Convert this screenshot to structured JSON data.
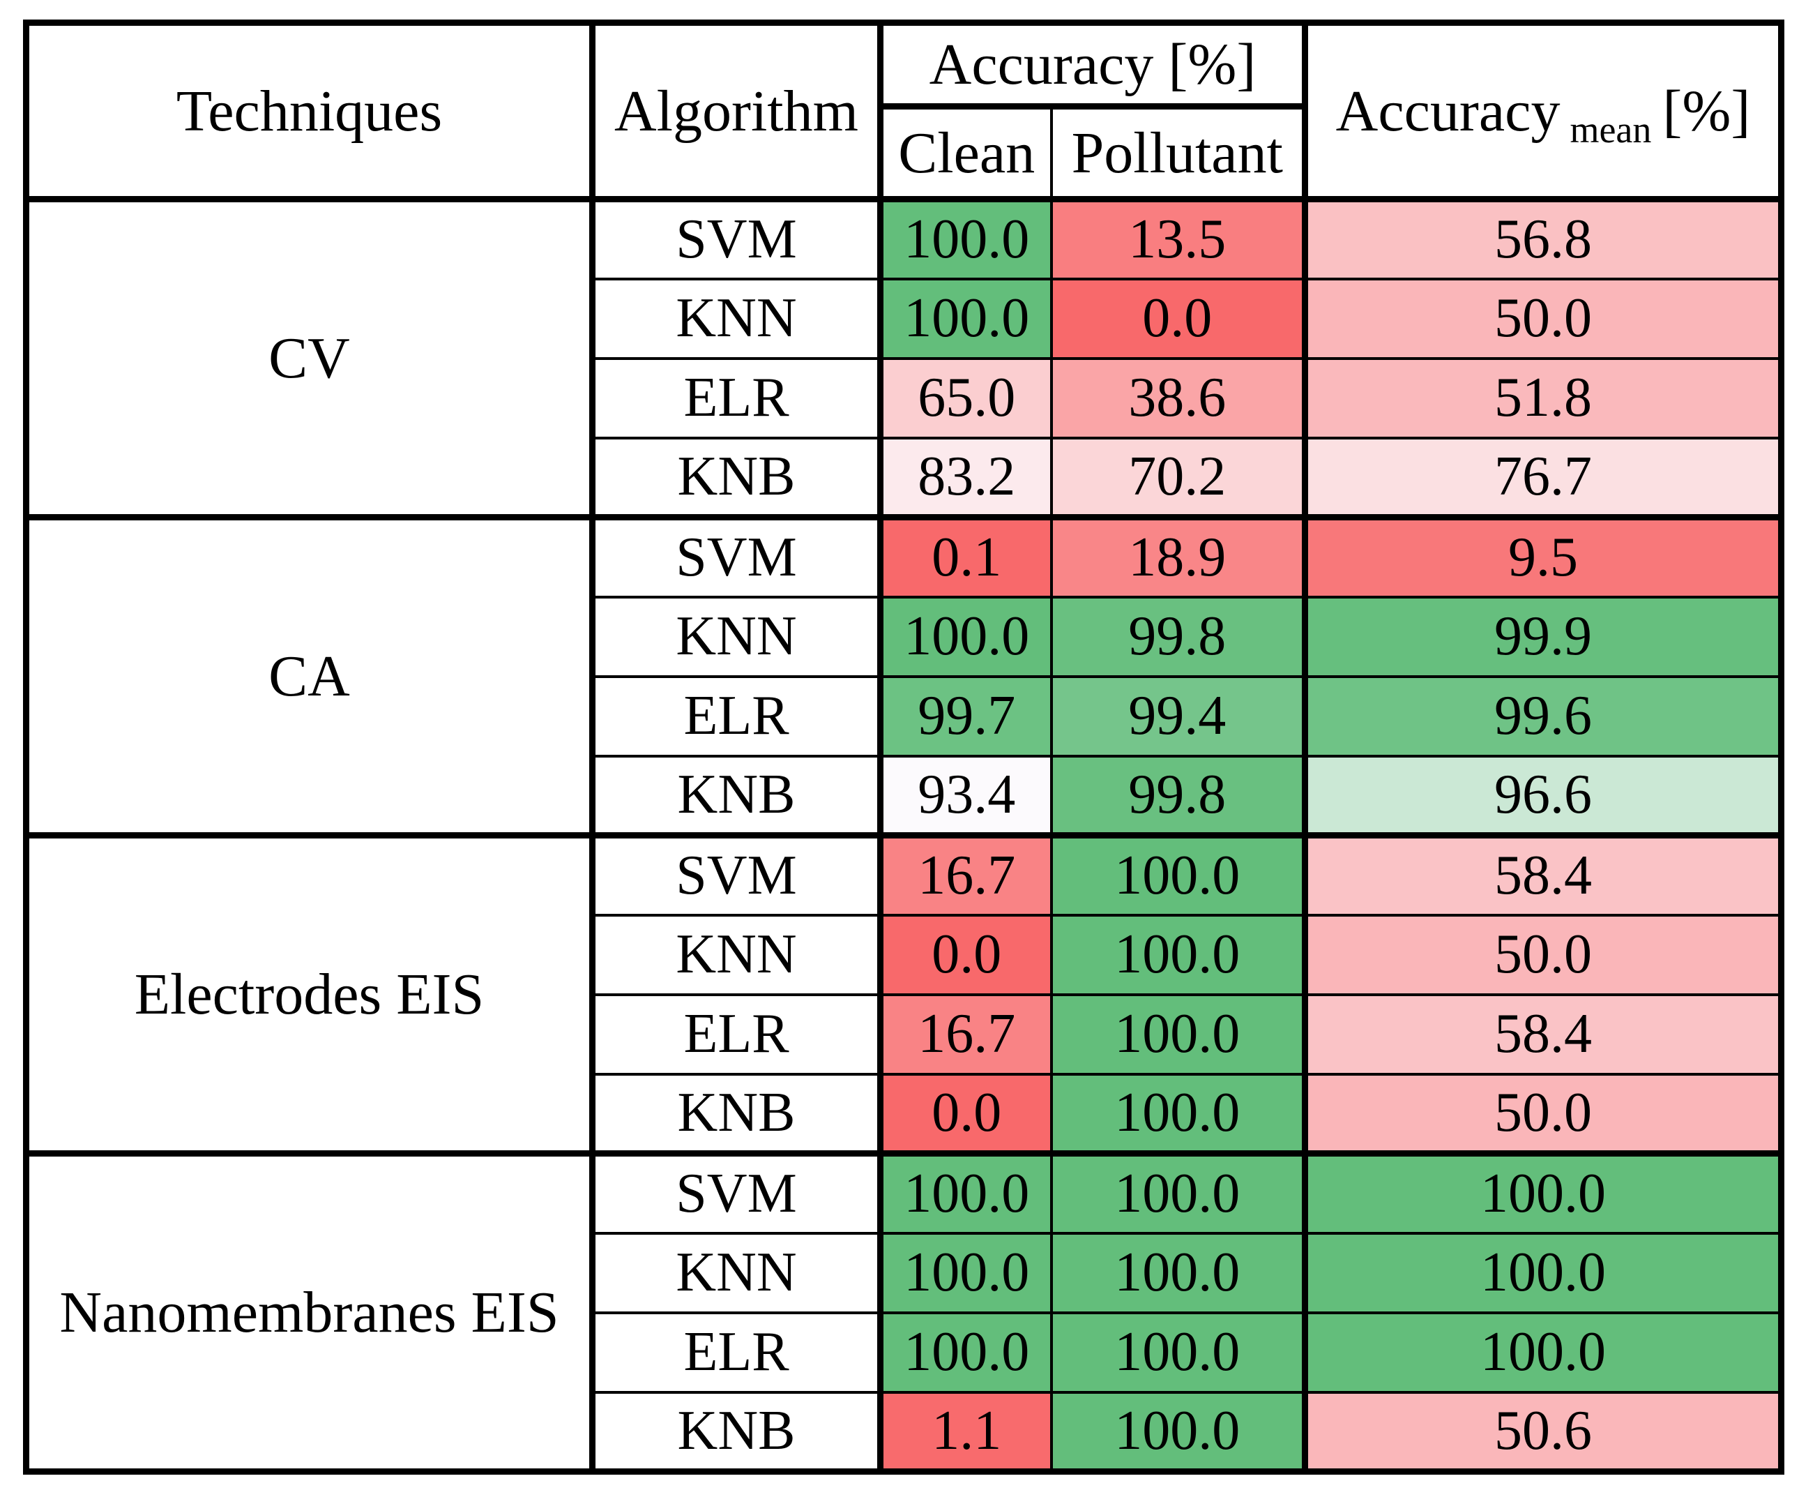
{
  "header": {
    "techniques": "Techniques",
    "algorithm": "Algorithm",
    "accuracy": "Accuracy [%]",
    "clean": "Clean",
    "pollutant": "Pollutant",
    "accuracy_mean_prefix": "Accuracy",
    "accuracy_mean_sub": "mean",
    "accuracy_mean_suffix": "[%]"
  },
  "color_scale": {
    "min": 0,
    "mid": 95,
    "max": 100,
    "min_color": "#F8696B",
    "mid_color": "#FCFCFF",
    "max_color": "#63BE7B",
    "border_color": "#000000",
    "text_color": "#000000"
  },
  "value_decimals": 1,
  "chart_data": {
    "type": "table",
    "columns": [
      "Techniques",
      "Algorithm",
      "Clean",
      "Pollutant",
      "Accuracy mean [%]"
    ],
    "groups": [
      {
        "technique": "CV",
        "rows": [
          {
            "algorithm": "SVM",
            "clean": 100.0,
            "pollutant": 13.5,
            "mean": 56.8
          },
          {
            "algorithm": "KNN",
            "clean": 100.0,
            "pollutant": 0.0,
            "mean": 50.0
          },
          {
            "algorithm": "ELR",
            "clean": 65.0,
            "pollutant": 38.6,
            "mean": 51.8
          },
          {
            "algorithm": "KNB",
            "clean": 83.2,
            "pollutant": 70.2,
            "mean": 76.7
          }
        ]
      },
      {
        "technique": "CA",
        "rows": [
          {
            "algorithm": "SVM",
            "clean": 0.1,
            "pollutant": 18.9,
            "mean": 9.5
          },
          {
            "algorithm": "KNN",
            "clean": 100.0,
            "pollutant": 99.8,
            "mean": 99.9
          },
          {
            "algorithm": "ELR",
            "clean": 99.7,
            "pollutant": 99.4,
            "mean": 99.6
          },
          {
            "algorithm": "KNB",
            "clean": 93.4,
            "pollutant": 99.8,
            "mean": 96.6
          }
        ]
      },
      {
        "technique": "Electrodes EIS",
        "rows": [
          {
            "algorithm": "SVM",
            "clean": 16.7,
            "pollutant": 100.0,
            "mean": 58.4
          },
          {
            "algorithm": "KNN",
            "clean": 0.0,
            "pollutant": 100.0,
            "mean": 50.0
          },
          {
            "algorithm": "ELR",
            "clean": 16.7,
            "pollutant": 100.0,
            "mean": 58.4
          },
          {
            "algorithm": "KNB",
            "clean": 0.0,
            "pollutant": 100.0,
            "mean": 50.0
          }
        ]
      },
      {
        "technique": "Nanomembranes EIS",
        "rows": [
          {
            "algorithm": "SVM",
            "clean": 100.0,
            "pollutant": 100.0,
            "mean": 100.0
          },
          {
            "algorithm": "KNN",
            "clean": 100.0,
            "pollutant": 100.0,
            "mean": 100.0
          },
          {
            "algorithm": "ELR",
            "clean": 100.0,
            "pollutant": 100.0,
            "mean": 100.0
          },
          {
            "algorithm": "KNB",
            "clean": 1.1,
            "pollutant": 100.0,
            "mean": 50.6
          }
        ]
      }
    ]
  }
}
